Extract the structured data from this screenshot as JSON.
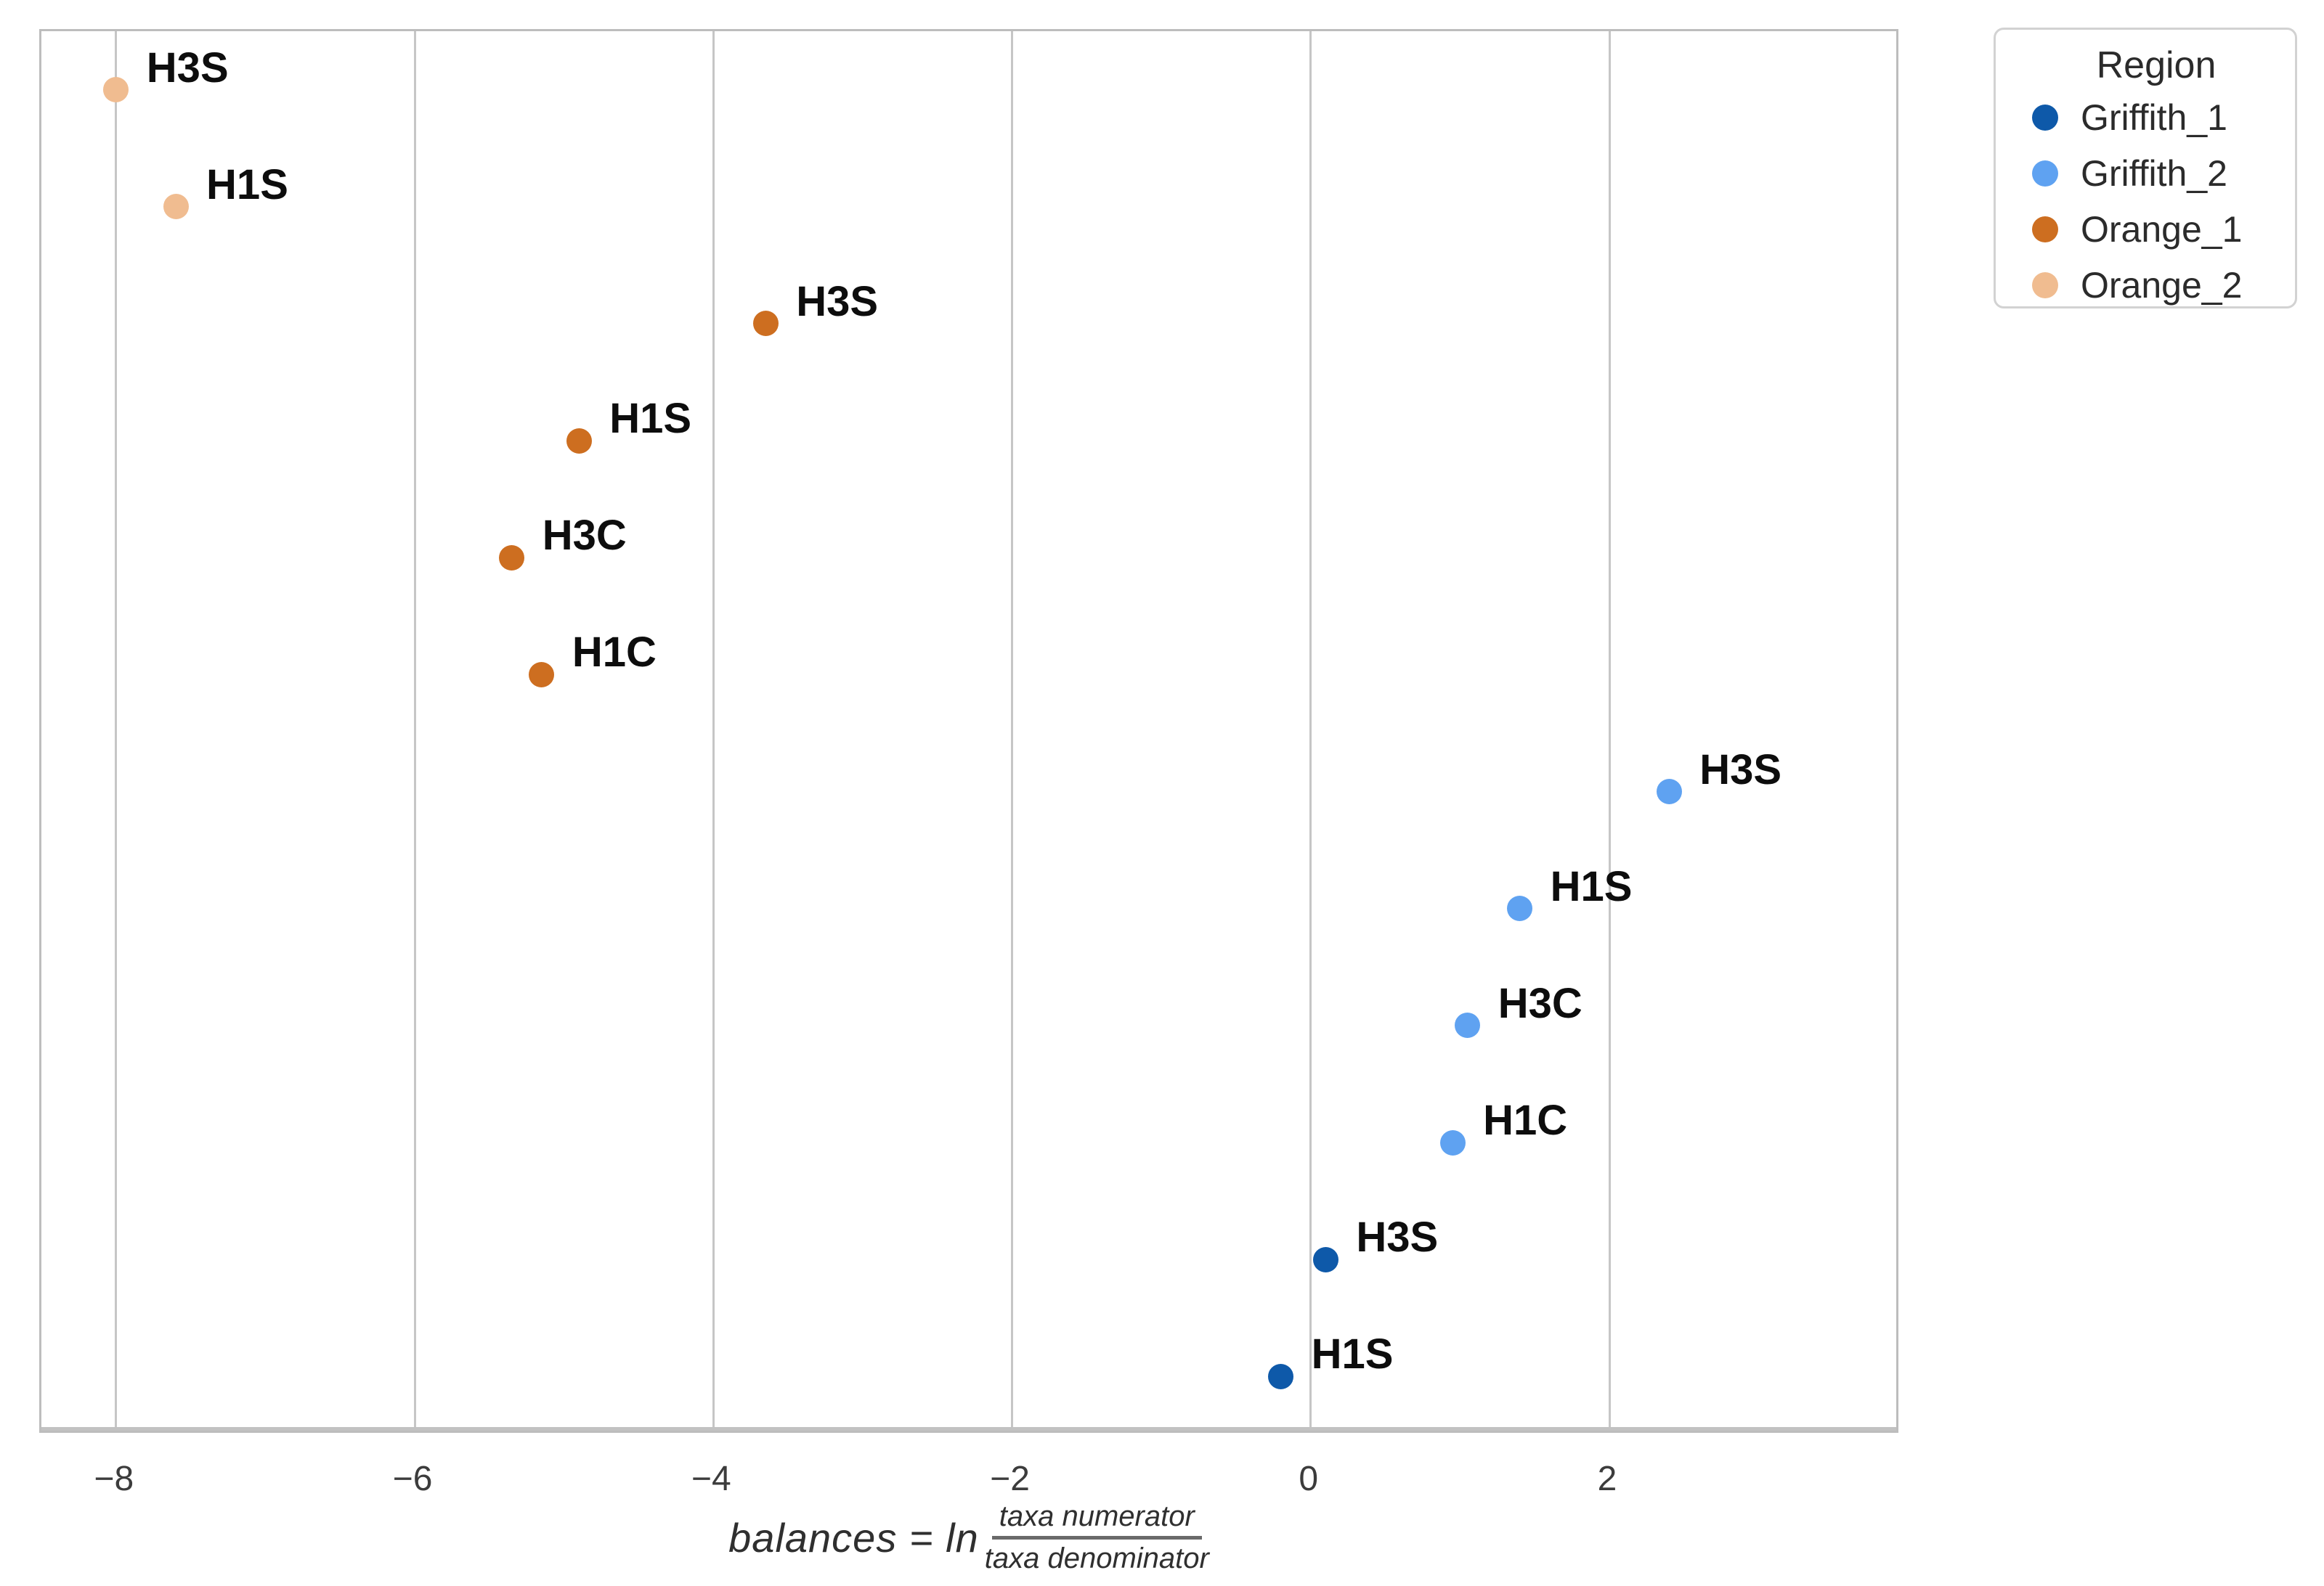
{
  "chart_data": {
    "type": "scatter",
    "title": "",
    "xlabel_prefix": "balances = ln",
    "xlabel_numerator": "taxa numerator",
    "xlabel_denominator": "taxa denominator",
    "ylabel": "",
    "x_ticks": [
      -8,
      -6,
      -4,
      -2,
      0,
      2
    ],
    "xlim": [
      -8.5,
      3.95
    ],
    "grid": "vertical-only",
    "background": "#ffffff",
    "gridline_color": "#c6c6c6",
    "legend": {
      "title": "Region",
      "position": "outside-top-right",
      "entries": [
        {
          "label": "Griffith_1",
          "color": "#0e59a9"
        },
        {
          "label": "Griffith_2",
          "color": "#5fa2f1"
        },
        {
          "label": "Orange_1",
          "color": "#cd6e20"
        },
        {
          "label": "Orange_2",
          "color": "#f0bc90"
        }
      ]
    },
    "points": [
      {
        "region": "Orange_2",
        "label": "H3S",
        "x": -8.0
      },
      {
        "region": "Orange_2",
        "label": "H1S",
        "x": -7.6
      },
      {
        "region": "Orange_1",
        "label": "H3S",
        "x": -3.65
      },
      {
        "region": "Orange_1",
        "label": "H1S",
        "x": -4.9
      },
      {
        "region": "Orange_1",
        "label": "H3C",
        "x": -5.35
      },
      {
        "region": "Orange_1",
        "label": "H1C",
        "x": -5.15
      },
      {
        "region": "Griffith_2",
        "label": "H3S",
        "x": 2.4
      },
      {
        "region": "Griffith_2",
        "label": "H1S",
        "x": 1.4
      },
      {
        "region": "Griffith_2",
        "label": "H3C",
        "x": 1.05
      },
      {
        "region": "Griffith_2",
        "label": "H1C",
        "x": 0.95
      },
      {
        "region": "Griffith_1",
        "label": "H3S",
        "x": 0.1
      },
      {
        "region": "Griffith_1",
        "label": "H1S",
        "x": -0.2
      }
    ]
  }
}
